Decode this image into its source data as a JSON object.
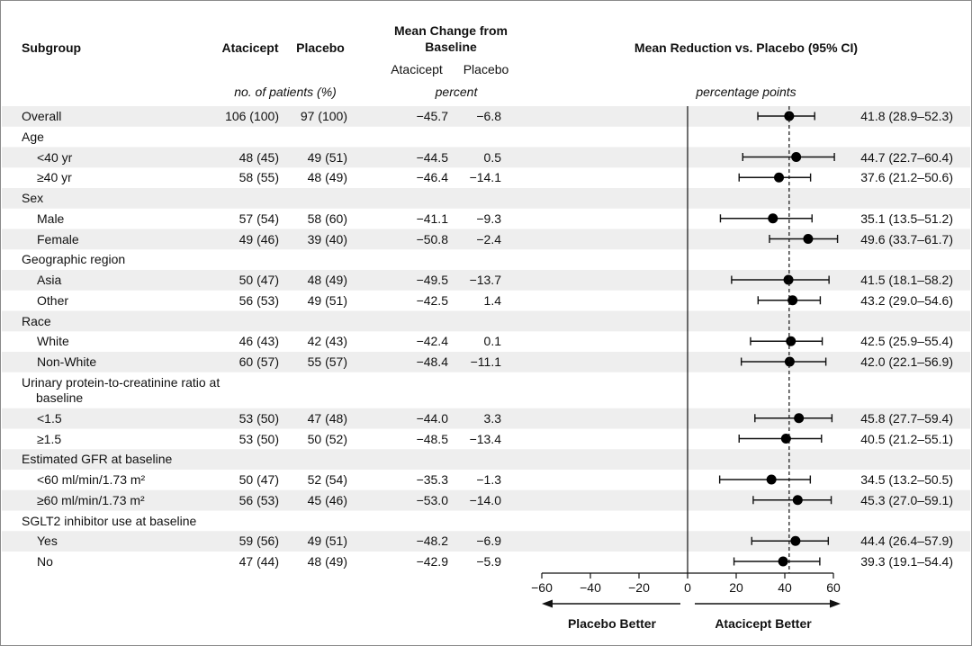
{
  "chart_data": {
    "type": "forest",
    "headers": {
      "subgroup": "Subgroup",
      "atacicept": "Atacicept",
      "placebo": "Placebo",
      "change_title": "Mean Change from Baseline",
      "change_atacicept": "Atacicept",
      "change_placebo": "Placebo",
      "patients_unit": "no. of patients (%)",
      "change_unit": "percent",
      "effect_title": "Mean Reduction vs. Placebo (95% CI)"
    },
    "x_label": "percentage points",
    "left_label": "Placebo Better",
    "right_label": "Atacicept Better",
    "xlim": [
      -60,
      60
    ],
    "xticks": [
      {
        "value": -60,
        "label": "−60"
      },
      {
        "value": -40,
        "label": "−40"
      },
      {
        "value": -20,
        "label": "−20"
      },
      0,
      20,
      40,
      60
    ],
    "rows": [
      {
        "label": "Overall",
        "atacicept_n": "106 (100)",
        "placebo_n": "97 (100)",
        "atacicept_change": "−45.7",
        "placebo_change": "−6.8",
        "estimate": 41.8,
        "ci_low": 28.9,
        "ci_high": 52.3,
        "ci_label": "41.8 (28.9–52.3)"
      },
      {
        "label": "Age"
      },
      {
        "label": "<40 yr",
        "atacicept_n": "48 (45)",
        "placebo_n": "49 (51)",
        "atacicept_change": "−44.5",
        "placebo_change": "0.5",
        "estimate": 44.7,
        "ci_low": 22.7,
        "ci_high": 60.4,
        "ci_label": "44.7 (22.7–60.4)"
      },
      {
        "label": "≥40 yr",
        "atacicept_n": "58 (55)",
        "placebo_n": "48 (49)",
        "atacicept_change": "−46.4",
        "placebo_change": "−14.1",
        "estimate": 37.6,
        "ci_low": 21.2,
        "ci_high": 50.6,
        "ci_label": "37.6 (21.2–50.6)"
      },
      {
        "label": "Sex"
      },
      {
        "label": "Male",
        "atacicept_n": "57 (54)",
        "placebo_n": "58 (60)",
        "atacicept_change": "−41.1",
        "placebo_change": "−9.3",
        "estimate": 35.1,
        "ci_low": 13.5,
        "ci_high": 51.2,
        "ci_label": "35.1 (13.5–51.2)"
      },
      {
        "label": "Female",
        "atacicept_n": "49 (46)",
        "placebo_n": "39 (40)",
        "atacicept_change": "−50.8",
        "placebo_change": "−2.4",
        "estimate": 49.6,
        "ci_low": 33.7,
        "ci_high": 61.7,
        "ci_label": "49.6 (33.7–61.7)"
      },
      {
        "label": "Geographic region"
      },
      {
        "label": "Asia",
        "atacicept_n": "50 (47)",
        "placebo_n": "48 (49)",
        "atacicept_change": "−49.5",
        "placebo_change": "−13.7",
        "estimate": 41.5,
        "ci_low": 18.1,
        "ci_high": 58.2,
        "ci_label": "41.5 (18.1–58.2)"
      },
      {
        "label": "Other",
        "atacicept_n": "56 (53)",
        "placebo_n": "49 (51)",
        "atacicept_change": "−42.5",
        "placebo_change": "1.4",
        "estimate": 43.2,
        "ci_low": 29.0,
        "ci_high": 54.6,
        "ci_label": "43.2 (29.0–54.6)"
      },
      {
        "label": "Race"
      },
      {
        "label": "White",
        "atacicept_n": "46 (43)",
        "placebo_n": "42 (43)",
        "atacicept_change": "−42.4",
        "placebo_change": "0.1",
        "estimate": 42.5,
        "ci_low": 25.9,
        "ci_high": 55.4,
        "ci_label": "42.5 (25.9–55.4)"
      },
      {
        "label": "Non-White",
        "atacicept_n": "60 (57)",
        "placebo_n": "55 (57)",
        "atacicept_change": "−48.4",
        "placebo_change": "−11.1",
        "estimate": 42.0,
        "ci_low": 22.1,
        "ci_high": 56.9,
        "ci_label": "42.0 (22.1–56.9)"
      },
      {
        "label": "Urinary protein-to-creatinine ratio at baseline"
      },
      {
        "label": "<1.5",
        "atacicept_n": "53 (50)",
        "placebo_n": "47 (48)",
        "atacicept_change": "−44.0",
        "placebo_change": "3.3",
        "estimate": 45.8,
        "ci_low": 27.7,
        "ci_high": 59.4,
        "ci_label": "45.8 (27.7–59.4)"
      },
      {
        "label": "≥1.5",
        "atacicept_n": "53 (50)",
        "placebo_n": "50 (52)",
        "atacicept_change": "−48.5",
        "placebo_change": "−13.4",
        "estimate": 40.5,
        "ci_low": 21.2,
        "ci_high": 55.1,
        "ci_label": "40.5 (21.2–55.1)"
      },
      {
        "label": "Estimated GFR at baseline"
      },
      {
        "label": "<60 ml/min/1.73 m²",
        "atacicept_n": "50 (47)",
        "placebo_n": "52 (54)",
        "atacicept_change": "−35.3",
        "placebo_change": "−1.3",
        "estimate": 34.5,
        "ci_low": 13.2,
        "ci_high": 50.5,
        "ci_label": "34.5 (13.2–50.5)"
      },
      {
        "label": "≥60 ml/min/1.73 m²",
        "atacicept_n": "56 (53)",
        "placebo_n": "45 (46)",
        "atacicept_change": "−53.0",
        "placebo_change": "−14.0",
        "estimate": 45.3,
        "ci_low": 27.0,
        "ci_high": 59.1,
        "ci_label": "45.3 (27.0–59.1)"
      },
      {
        "label": "SGLT2 inhibitor use at baseline"
      },
      {
        "label": "Yes",
        "atacicept_n": "59 (56)",
        "placebo_n": "49 (51)",
        "atacicept_change": "−48.2",
        "placebo_change": "−6.9",
        "estimate": 44.4,
        "ci_low": 26.4,
        "ci_high": 57.9,
        "ci_label": "44.4 (26.4–57.9)"
      },
      {
        "label": "No",
        "atacicept_n": "47 (44)",
        "placebo_n": "48 (49)",
        "atacicept_change": "−42.9",
        "placebo_change": "−5.9",
        "estimate": 39.3,
        "ci_low": 19.1,
        "ci_high": 54.4,
        "ci_label": "39.3 (19.1–54.4)"
      }
    ]
  }
}
